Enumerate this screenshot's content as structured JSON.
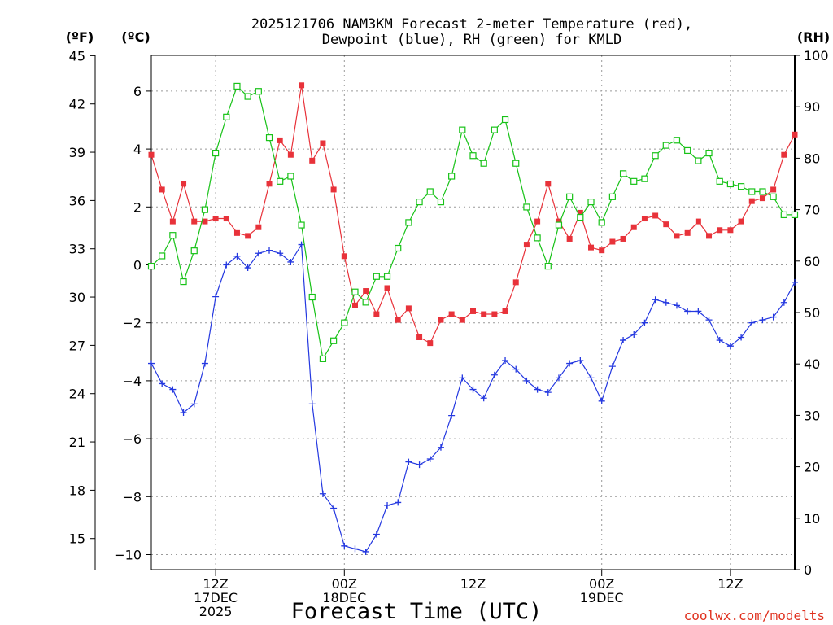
{
  "title_line1": "2025121706 NAM3KM Forecast 2-meter Temperature (red),",
  "title_line2": "Dewpoint (blue), RH (green) for KMLD",
  "units": {
    "f": "(ºF)",
    "c": "(ºC)",
    "rh": "(RH)"
  },
  "xlabel": "Forecast Time (UTC)",
  "credit": "coolwx.com/modelts",
  "colors": {
    "temperature": "#e8323a",
    "dewpoint": "#2438e0",
    "rh": "#17c217",
    "grid": "#9a9a9a"
  },
  "chart_data": {
    "type": "line",
    "x_unit": "forecast hour from 2025-12-17 06Z",
    "x_range": [
      0,
      60
    ],
    "ylim_c": [
      -10.5,
      7.5
    ],
    "ylim_f": [
      13.1,
      45.5
    ],
    "ylim_rh": [
      0,
      100
    ],
    "grid": true,
    "f_ticks": [
      "15",
      "18",
      "21",
      "24",
      "27",
      "30",
      "33",
      "36",
      "39",
      "42",
      "45"
    ],
    "c_ticks": [
      "−10",
      "−8",
      "−6",
      "−4",
      "−2",
      "0",
      "2",
      "4",
      "6"
    ],
    "rh_ticks": [
      "0",
      "10",
      "20",
      "30",
      "40",
      "50",
      "60",
      "70",
      "80",
      "90",
      "100"
    ],
    "x_ticks": [
      {
        "hour": 6,
        "lines": [
          "12Z",
          "17DEC",
          "2025"
        ]
      },
      {
        "hour": 18,
        "lines": [
          "00Z",
          "18DEC"
        ]
      },
      {
        "hour": 30,
        "lines": [
          "12Z"
        ]
      },
      {
        "hour": 42,
        "lines": [
          "00Z",
          "19DEC"
        ]
      },
      {
        "hour": 54,
        "lines": [
          "12Z"
        ]
      }
    ],
    "series": [
      {
        "name": "Temperature",
        "axis": "c",
        "marker": "filled-square",
        "values": [
          3.8,
          2.6,
          1.5,
          2.8,
          1.5,
          1.5,
          1.6,
          1.6,
          1.1,
          1.0,
          1.3,
          2.8,
          4.3,
          3.8,
          6.2,
          3.6,
          4.2,
          2.6,
          0.3,
          -1.4,
          -0.9,
          -1.7,
          -0.8,
          -1.9,
          -1.5,
          -2.5,
          -2.7,
          -1.9,
          -1.7,
          -1.9,
          -1.6,
          -1.7,
          -1.7,
          -1.6,
          -0.6,
          0.7,
          1.5,
          2.8,
          1.5,
          0.9,
          1.8,
          0.6,
          0.5,
          0.8,
          0.9,
          1.3,
          1.6,
          1.7,
          1.4,
          1.0,
          1.1,
          1.5,
          1.0,
          1.2,
          1.2,
          1.5,
          2.2,
          2.3,
          2.6,
          3.8,
          4.5
        ]
      },
      {
        "name": "Dewpoint",
        "axis": "c",
        "marker": "plus",
        "values": [
          -3.4,
          -4.1,
          -4.3,
          -5.1,
          -4.8,
          -3.4,
          -1.1,
          0.0,
          0.3,
          -0.1,
          0.4,
          0.5,
          0.4,
          0.1,
          0.7,
          -4.8,
          -7.9,
          -8.4,
          -9.7,
          -9.8,
          -9.9,
          -9.3,
          -8.3,
          -8.2,
          -6.8,
          -6.9,
          -6.7,
          -6.3,
          -5.2,
          -3.9,
          -4.3,
          -4.6,
          -3.8,
          -3.3,
          -3.6,
          -4.0,
          -4.3,
          -4.4,
          -3.9,
          -3.4,
          -3.3,
          -3.9,
          -4.7,
          -3.5,
          -2.6,
          -2.4,
          -2.0,
          -1.2,
          -1.3,
          -1.4,
          -1.6,
          -1.6,
          -1.9,
          -2.6,
          -2.8,
          -2.5,
          -2.0,
          -1.9,
          -1.8,
          -1.3,
          -0.6
        ]
      },
      {
        "name": "RH",
        "axis": "rh",
        "marker": "open-square",
        "values": [
          59.0,
          61.0,
          65.0,
          56.0,
          62.0,
          70.0,
          81.0,
          88.0,
          94.0,
          92.0,
          93.0,
          84.0,
          75.5,
          76.5,
          67.0,
          53.0,
          41.0,
          44.5,
          48.0,
          54.0,
          52.0,
          57.0,
          57.0,
          62.5,
          67.5,
          71.5,
          73.5,
          71.5,
          76.5,
          85.5,
          80.5,
          79.0,
          85.5,
          87.5,
          79.0,
          70.5,
          64.5,
          59.0,
          67.0,
          72.5,
          68.5,
          71.5,
          67.5,
          72.5,
          77.0,
          75.5,
          76.0,
          80.5,
          82.5,
          83.5,
          81.5,
          79.5,
          81.0,
          75.5,
          75.0,
          74.5,
          73.5,
          73.5,
          72.5,
          69.0,
          69.0
        ]
      }
    ]
  }
}
